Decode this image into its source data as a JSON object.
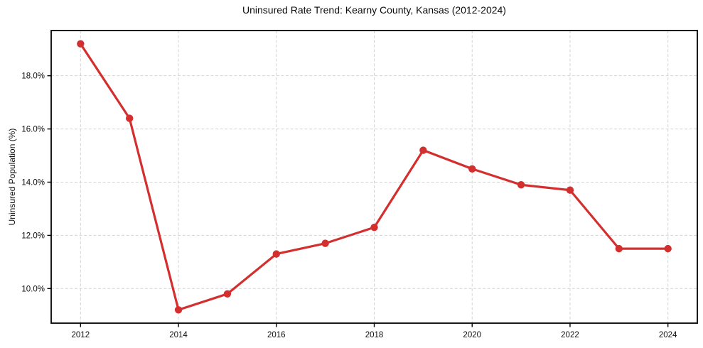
{
  "figure": {
    "title": "Uninsured Rate Trend: Kearny County, Kansas (2012-2024)"
  },
  "chart_data": {
    "type": "line",
    "title": "Uninsured Rate Trend: Kearny County, Kansas (2012-2024)",
    "xlabel": "",
    "ylabel": "Uninsured Population (%)",
    "x": [
      2012,
      2013,
      2014,
      2015,
      2016,
      2017,
      2018,
      2019,
      2020,
      2021,
      2022,
      2023,
      2024
    ],
    "values": [
      19.2,
      16.4,
      9.2,
      9.8,
      11.3,
      11.7,
      12.3,
      15.2,
      14.5,
      13.9,
      13.7,
      11.5,
      11.5
    ],
    "xticks": [
      2012,
      2014,
      2016,
      2018,
      2020,
      2022,
      2024
    ],
    "xtick_labels": [
      "2012",
      "2014",
      "2016",
      "2018",
      "2020",
      "2022",
      "2024"
    ],
    "yticks": [
      10,
      12,
      14,
      16,
      18
    ],
    "ytick_labels": [
      "10.0%",
      "12.0%",
      "14.0%",
      "16.0%",
      "18.0%"
    ],
    "xlim": [
      2011.4,
      2024.6
    ],
    "ylim": [
      8.7,
      19.7
    ],
    "grid": true,
    "grid_style": "dashed",
    "legend": "none",
    "line_color": "#d32f2f",
    "marker": "circle",
    "grid_color": "#d4d4d4",
    "axis_color": "#000000",
    "background": "#ffffff"
  }
}
